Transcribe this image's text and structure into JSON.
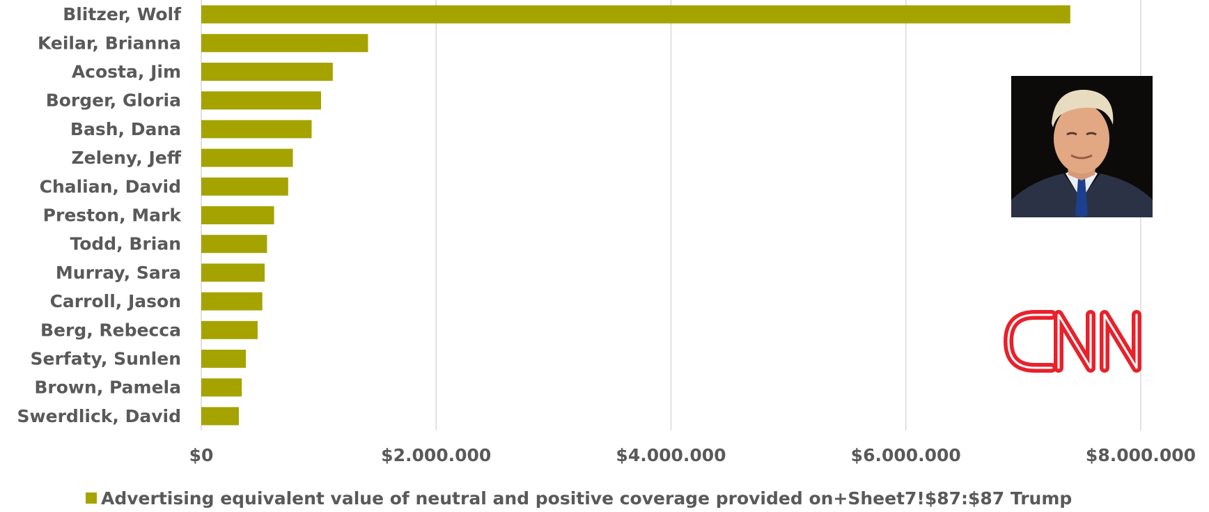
{
  "chart_data": {
    "type": "bar",
    "orientation": "horizontal",
    "categories": [
      "Blitzer, Wolf",
      "Keilar, Brianna",
      "Acosta, Jim",
      "Borger, Gloria",
      "Bash, Dana",
      "Zeleny, Jeff",
      "Chalian, David",
      "Preston, Mark",
      "Todd, Brian",
      "Murray, Sara",
      "Carroll, Jason",
      "Berg, Rebecca",
      "Serfaty, Sunlen",
      "Brown, Pamela",
      "Swerdlick, David"
    ],
    "series": [
      {
        "name": "Advertising equivalent value of neutral and positive coverage provided on+Sheet7!$87:$87 Trump",
        "values": [
          7400000,
          1420000,
          1120000,
          1020000,
          940000,
          780000,
          740000,
          620000,
          560000,
          540000,
          520000,
          480000,
          380000,
          345000,
          320000
        ]
      }
    ],
    "xlim": [
      0,
      8000000
    ],
    "x_ticks": [
      0,
      2000000,
      4000000,
      6000000,
      8000000
    ],
    "x_tick_labels": [
      "$0",
      "$2.000.000",
      "$4.000.000",
      "$6.000.000",
      "$8.000.000"
    ],
    "grid": true,
    "legend_position": "bottom",
    "bar_color": "#a5a300"
  },
  "images": {
    "photo": "portrait-photo",
    "logo": "CNN"
  }
}
